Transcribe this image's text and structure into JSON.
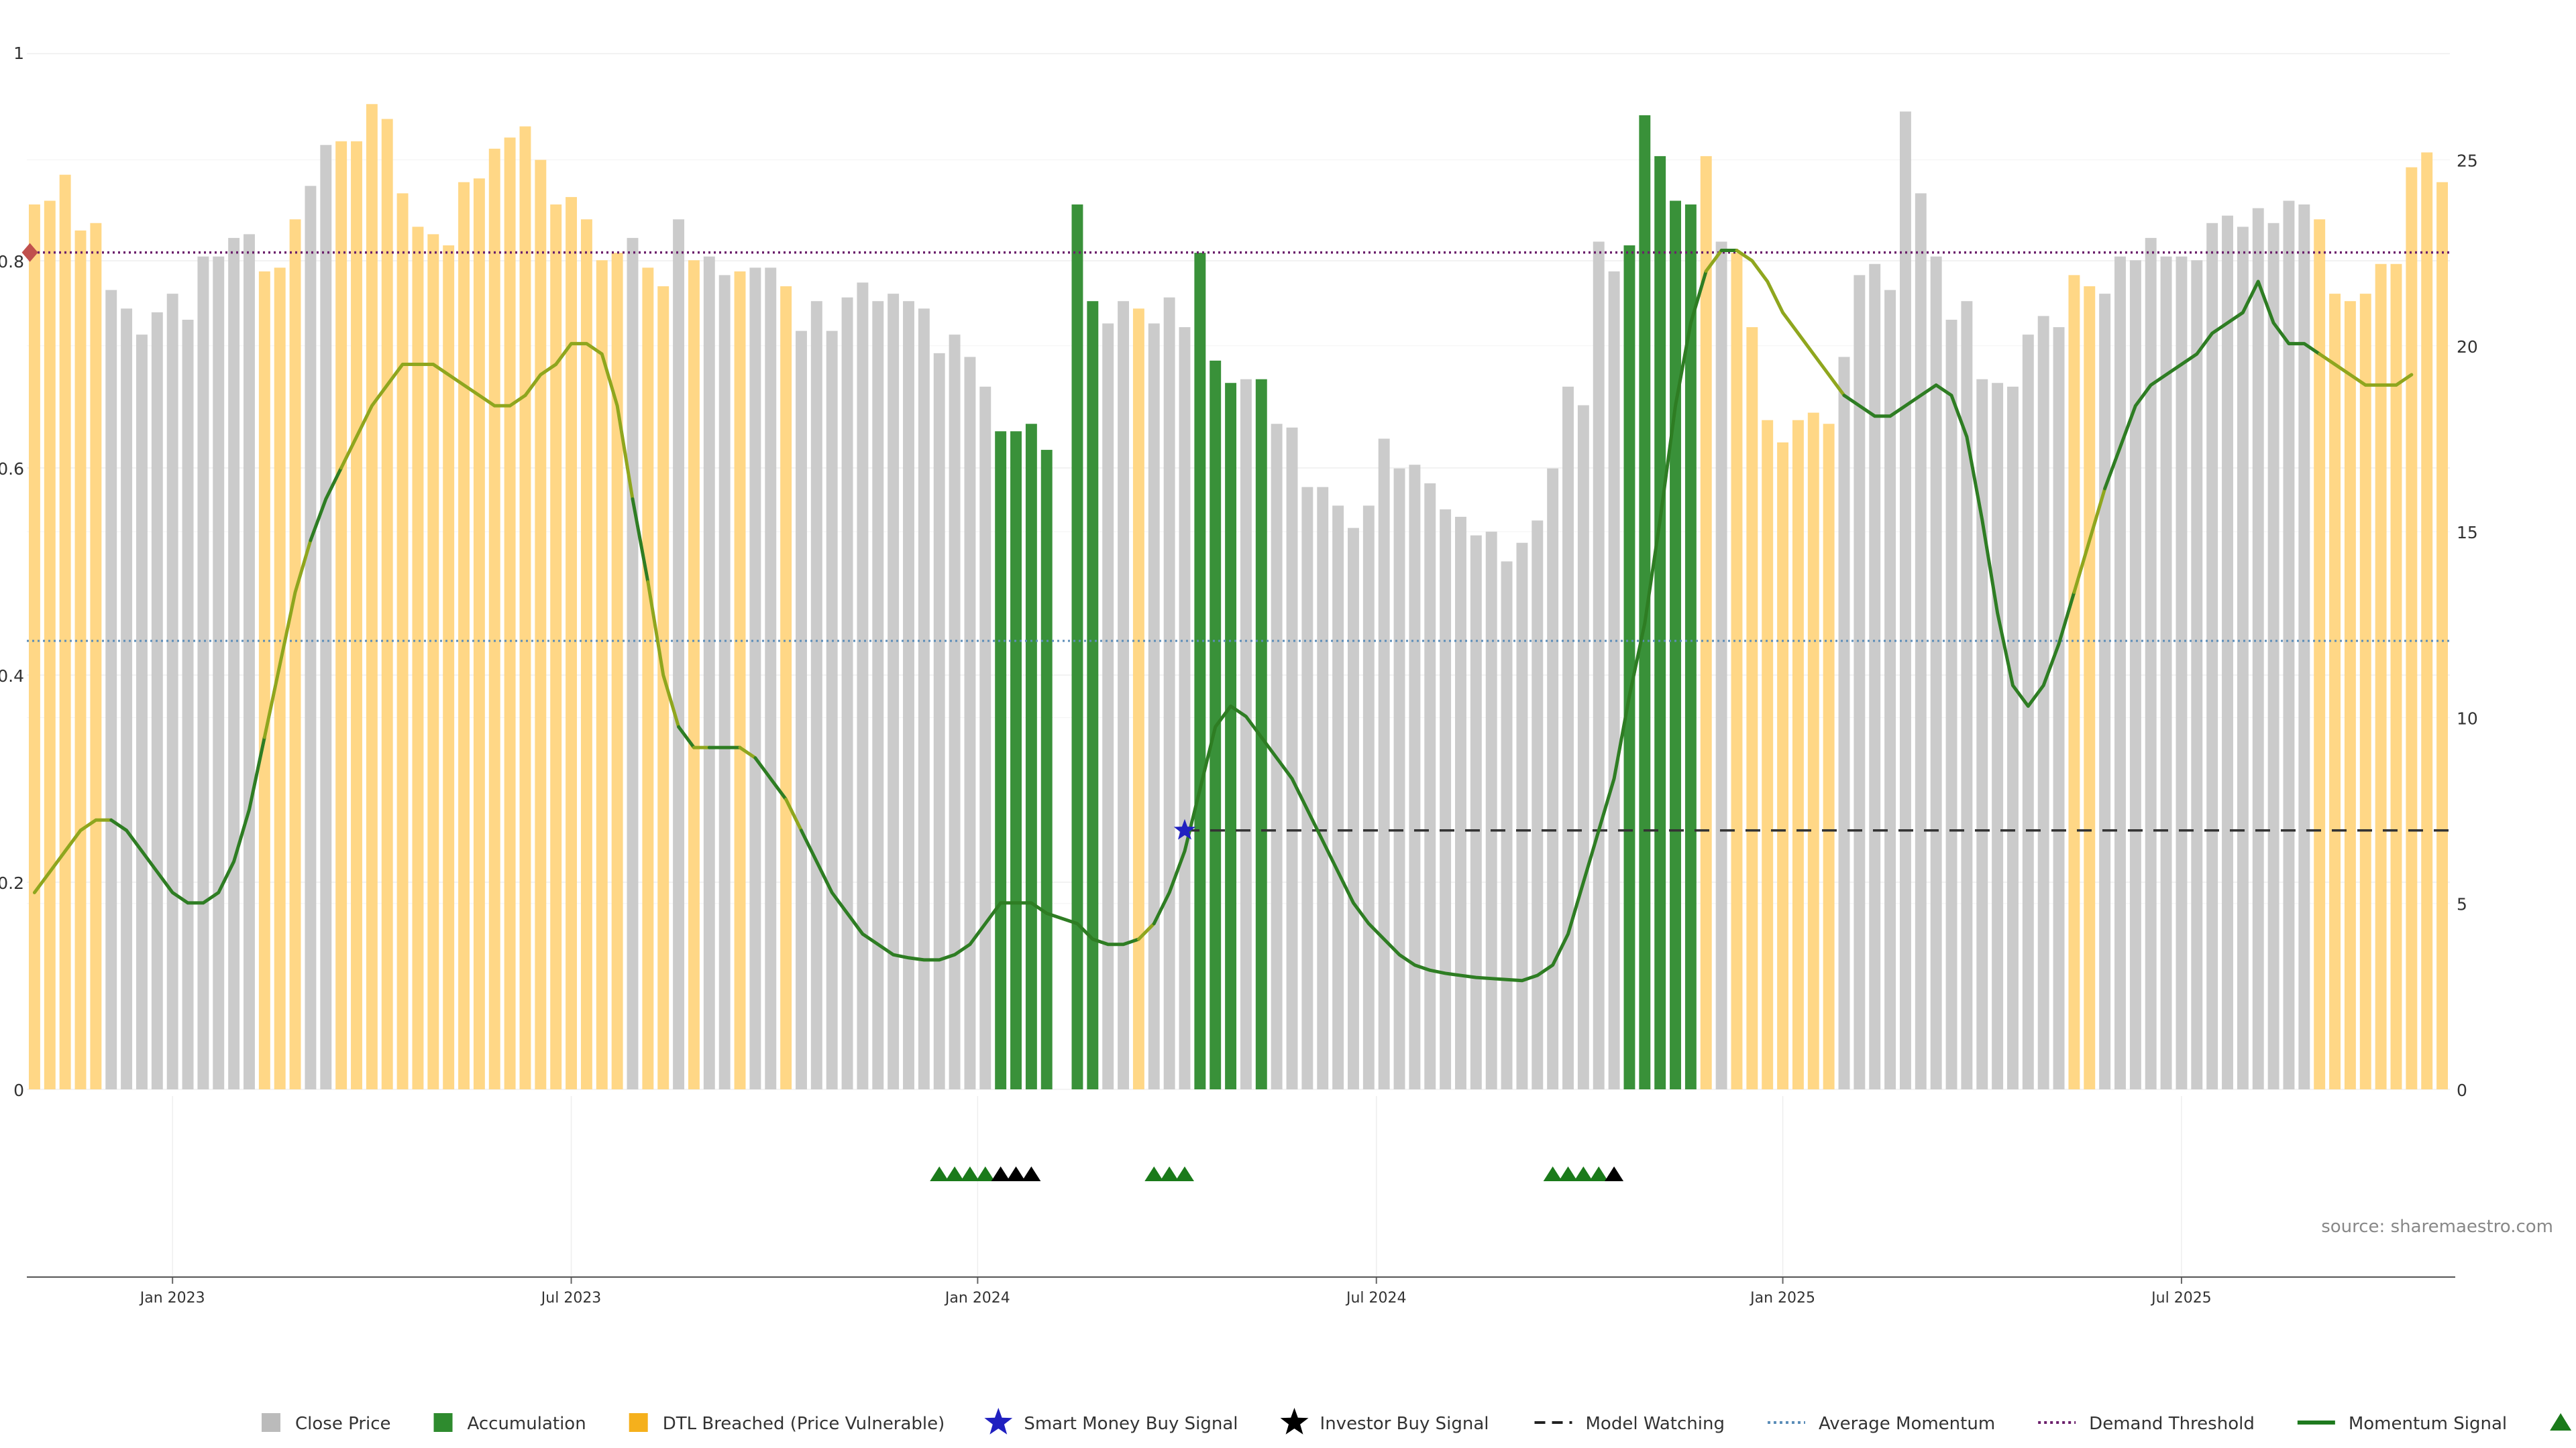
{
  "chart_data": {
    "type": "bar",
    "source": "source: sharemaestro.com",
    "left_axis": {
      "ticks": [
        "0",
        "0.2",
        "0.4",
        "0.6",
        "0.8",
        "1"
      ],
      "values": [
        0,
        0.2,
        0.4,
        0.6,
        0.8,
        1
      ],
      "ylim": [
        0,
        1
      ]
    },
    "right_axis": {
      "ticks": [
        "0",
        "5",
        "10",
        "15",
        "20",
        "25"
      ],
      "values": [
        0,
        5,
        10,
        15,
        20,
        25
      ],
      "ylim": [
        0,
        27.857
      ]
    },
    "date_ticks": [
      {
        "label": "Jan 2023",
        "index": 9
      },
      {
        "label": "Jul 2023",
        "index": 35
      },
      {
        "label": "Jan 2024",
        "index": 61.5
      },
      {
        "label": "Jul 2024",
        "index": 87.5
      },
      {
        "label": "Jan 2025",
        "index": 114
      },
      {
        "label": "Jul 2025",
        "index": 140
      }
    ],
    "bar_types": "OOOOOGGGGGGGGGGOOOGGOOOOOOOOOOOOOOOOOOOGOOGOGGOGGOGGGGGGGGGGGGGAAAAAAAGGOGGGAAAGAGGGGGGGGGGGGGGGGGGGGGGGAAAAAOGOOOOOOOGGGGGGGGGGGGGGGOOGGGGGGGGGGGGGGOOOOOOOOOOGGGGGGOOO",
    "bar_values": [
      23.8,
      23.9,
      24.6,
      23.1,
      23.3,
      21.5,
      21.0,
      20.3,
      20.9,
      21.4,
      20.7,
      22.4,
      22.4,
      22.9,
      23.0,
      22.0,
      22.1,
      23.4,
      24.3,
      25.4,
      25.5,
      25.5,
      26.5,
      26.1,
      24.1,
      23.2,
      23.0,
      22.7,
      24.4,
      24.5,
      25.3,
      25.6,
      25.9,
      25.0,
      23.8,
      24.0,
      23.4,
      22.3,
      22.5,
      22.9,
      22.1,
      21.6,
      23.4,
      22.3,
      22.4,
      21.9,
      22.0,
      22.1,
      22.1,
      21.6,
      20.4,
      21.2,
      20.4,
      21.3,
      21.7,
      21.2,
      21.4,
      21.2,
      21.0,
      19.8,
      20.3,
      19.7,
      18.9,
      17.7,
      17.7,
      17.9,
      17.2,
      0,
      23.8,
      21.2,
      20.6,
      21.2,
      21.0,
      20.6,
      21.3,
      20.5,
      22.5,
      19.6,
      19.0,
      19.1,
      19.1,
      17.9,
      17.8,
      16.2,
      16.2,
      15.7,
      15.1,
      15.7,
      17.5,
      16.7,
      16.8,
      16.3,
      15.6,
      15.4,
      14.9,
      15.0,
      14.2,
      14.7,
      15.3,
      16.7,
      18.9,
      18.4,
      22.8,
      22.0,
      22.7,
      26.2,
      25.1,
      23.9,
      23.8,
      25.1,
      22.8,
      22.5,
      20.5,
      18.0,
      17.4,
      18.0,
      18.2,
      17.9,
      19.7,
      21.9,
      22.2,
      21.5,
      26.3,
      24.1,
      22.4,
      20.7,
      21.2,
      19.1,
      19.0,
      18.9,
      20.3,
      20.8,
      20.5,
      21.9,
      21.6,
      21.4,
      22.4,
      22.3,
      22.9,
      22.4,
      22.4,
      22.3,
      23.3,
      23.5,
      23.2,
      23.7,
      23.3,
      23.9,
      23.8,
      23.4,
      21.4,
      21.2,
      21.4,
      22.2,
      22.2,
      24.8,
      25.2,
      24.4
    ],
    "momentum_signal": [
      0.19,
      0.21,
      0.23,
      0.25,
      0.26,
      0.26,
      0.25,
      0.23,
      0.21,
      0.19,
      0.18,
      0.18,
      0.19,
      0.22,
      0.27,
      0.34,
      0.41,
      0.48,
      0.53,
      0.57,
      0.6,
      0.63,
      0.66,
      0.68,
      0.7,
      0.7,
      0.7,
      0.69,
      0.68,
      0.67,
      0.66,
      0.66,
      0.67,
      0.69,
      0.7,
      0.72,
      0.72,
      0.71,
      0.66,
      0.57,
      0.49,
      0.4,
      0.35,
      0.33,
      0.33,
      0.33,
      0.33,
      0.32,
      0.3,
      0.28,
      0.25,
      0.22,
      0.19,
      0.17,
      0.15,
      0.14,
      0.13,
      0.127,
      0.125,
      0.125,
      0.13,
      0.14,
      0.16,
      0.18,
      0.18,
      0.18,
      0.17,
      0.165,
      0.16,
      0.145,
      0.14,
      0.14,
      0.145,
      0.16,
      0.19,
      0.23,
      0.29,
      0.35,
      0.37,
      0.36,
      0.34,
      0.32,
      0.3,
      0.27,
      0.24,
      0.21,
      0.18,
      0.16,
      0.145,
      0.13,
      0.12,
      0.115,
      0.112,
      0.11,
      0.108,
      0.107,
      0.106,
      0.105,
      0.11,
      0.12,
      0.15,
      0.2,
      0.25,
      0.3,
      0.38,
      0.45,
      0.55,
      0.66,
      0.74,
      0.79,
      0.81,
      0.81,
      0.8,
      0.78,
      0.75,
      0.73,
      0.71,
      0.69,
      0.67,
      0.66,
      0.65,
      0.65,
      0.66,
      0.67,
      0.68,
      0.67,
      0.63,
      0.55,
      0.46,
      0.39,
      0.37,
      0.39,
      0.43,
      0.48,
      0.53,
      0.58,
      0.62,
      0.66,
      0.68,
      0.69,
      0.7,
      0.71,
      0.73,
      0.74,
      0.75,
      0.78,
      0.74,
      0.72,
      0.72,
      0.71,
      0.7,
      0.69,
      0.68,
      0.68,
      0.68,
      0.69
    ],
    "average_momentum": 0.433,
    "demand_threshold": 0.808,
    "model_watching": {
      "value": 0.25,
      "from_index": 75
    },
    "smart_money_buy_signal": {
      "index": 75,
      "value": 0.25
    },
    "start_marker": {
      "index": 0,
      "value": 0.808
    },
    "accumulation_markers": [
      59,
      60,
      61,
      62,
      73,
      74,
      75,
      99,
      100,
      101,
      102
    ],
    "investor_buy_markers": [
      63,
      64,
      65,
      103
    ],
    "legend": [
      "Close Price",
      "Accumulation",
      "DTL Breached (Price Vulnerable)",
      "Smart Money Buy Signal",
      "Investor Buy Signal",
      "Model Watching",
      "Average Momentum",
      "Demand Threshold",
      "Momentum Signal",
      "Accumulation"
    ]
  },
  "colors": {
    "close_price": "#c8c8c8",
    "accumulation": "#2e8b2e",
    "dtl_breached": "#ffd580",
    "momentum": "#2e7d23",
    "average_momentum": "#5b8db8",
    "demand_threshold": "#6b1f6b",
    "model_watching": "#333333",
    "smart_money": "#2020c0",
    "investor": "#000000",
    "start_marker": "#c0504d"
  }
}
